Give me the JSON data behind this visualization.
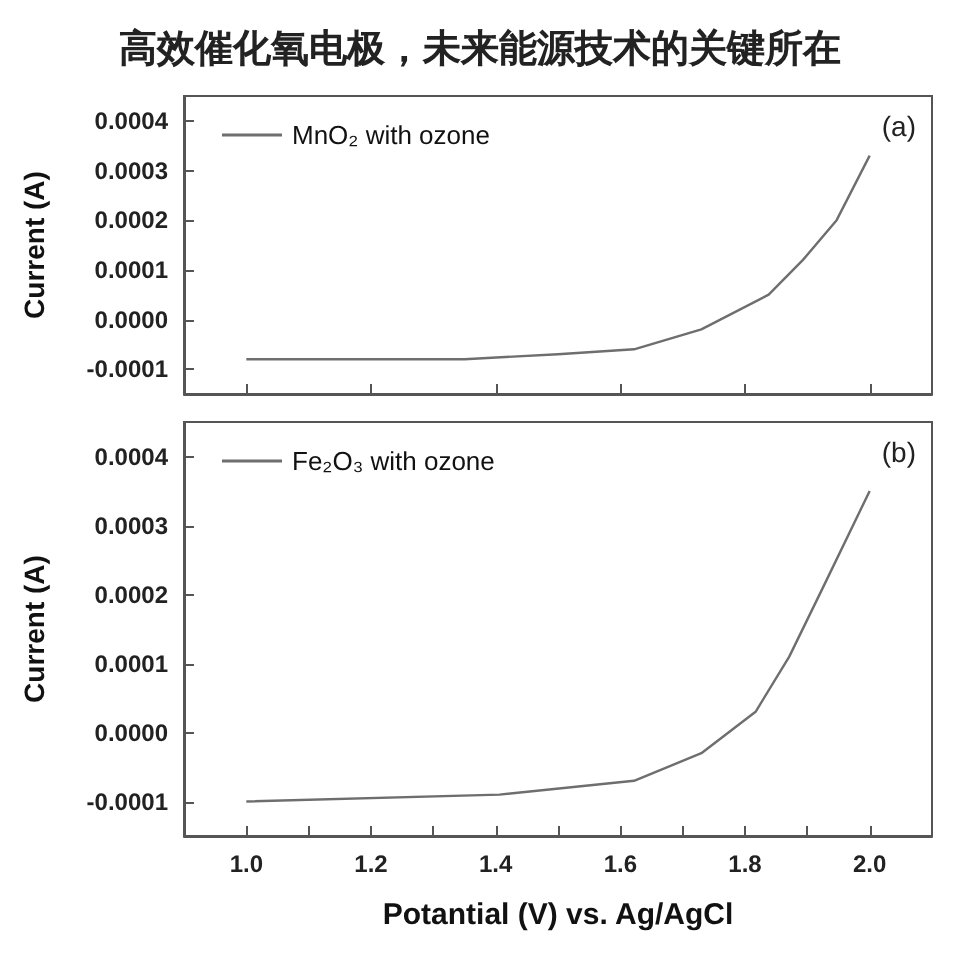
{
  "chart_data": [
    {
      "type": "line",
      "title": "高效催化氧电极，未来能源技术的关键所在",
      "ylabel": "Current (A)",
      "annotations": [
        "(a)"
      ],
      "legend": "top left",
      "tick_labels": "y",
      "grid": false,
      "marker": "none",
      "line_style": "solid",
      "series": [
        {
          "name": "MnO₂ with ozone",
          "color": "#6e6e6e",
          "x": [
            1.0,
            1.35,
            1.5,
            1.622,
            1.73,
            1.838,
            1.893,
            1.947,
            2.0
          ],
          "values": [
            -8e-05,
            -8e-05,
            -7e-05,
            -6e-05,
            -2e-05,
            5e-05,
            0.00012,
            0.0002,
            0.00033
          ]
        }
      ],
      "xlim": [
        0.9,
        2.1
      ],
      "xticks": [
        1.0,
        1.2,
        1.4,
        1.6,
        1.8,
        2.0
      ],
      "ylim": [
        -0.00015,
        0.00045
      ],
      "yticks": [
        {
          "value": -0.0001,
          "label": "-0.0001"
        },
        {
          "value": 0,
          "label": "0.0000"
        },
        {
          "value": 0.0001,
          "label": "0.0001"
        },
        {
          "value": 0.0002,
          "label": "0.0002"
        },
        {
          "value": 0.0003,
          "label": "0.0003"
        },
        {
          "value": 0.0004,
          "label": "0.0004"
        }
      ]
    },
    {
      "type": "line",
      "xlabel": "Potantial (V) vs. Ag/AgCl",
      "ylabel": "Current (A)",
      "annotations": [
        "(b)"
      ],
      "legend": "top left",
      "grid": false,
      "marker": "none",
      "line_style": "solid",
      "series": [
        {
          "name": "Fe₂O₃ with ozone",
          "color": "#6e6e6e",
          "x": [
            1.0,
            1.406,
            1.622,
            1.73,
            1.817,
            1.871,
            1.925,
            2.0
          ],
          "values": [
            -0.0001,
            -9e-05,
            -7e-05,
            -3e-05,
            3e-05,
            0.00011,
            0.00021,
            0.00035
          ]
        }
      ],
      "xlim": [
        0.9,
        2.1
      ],
      "xticks": [
        {
          "value": 1.0,
          "label": "1.0"
        },
        {
          "value": 1.1,
          "label": null
        },
        {
          "value": 1.2,
          "label": "1.2"
        },
        {
          "value": 1.3,
          "label": null
        },
        {
          "value": 1.4,
          "label": "1.4"
        },
        {
          "value": 1.5,
          "label": null
        },
        {
          "value": 1.6,
          "label": "1.6"
        },
        {
          "value": 1.7,
          "label": null
        },
        {
          "value": 1.8,
          "label": "1.8"
        },
        {
          "value": 1.9,
          "label": null
        },
        {
          "value": 2.0,
          "label": "2.0"
        }
      ],
      "ylim": [
        -0.00015,
        0.00045
      ],
      "yticks": [
        {
          "value": -0.0001,
          "label": "-0.0001"
        },
        {
          "value": 0,
          "label": "0.0000"
        },
        {
          "value": 0.0001,
          "label": "0.0001"
        },
        {
          "value": 0.0002,
          "label": "0.0002"
        },
        {
          "value": 0.0003,
          "label": "0.0003"
        },
        {
          "value": 0.0004,
          "label": "0.0004"
        }
      ]
    }
  ]
}
